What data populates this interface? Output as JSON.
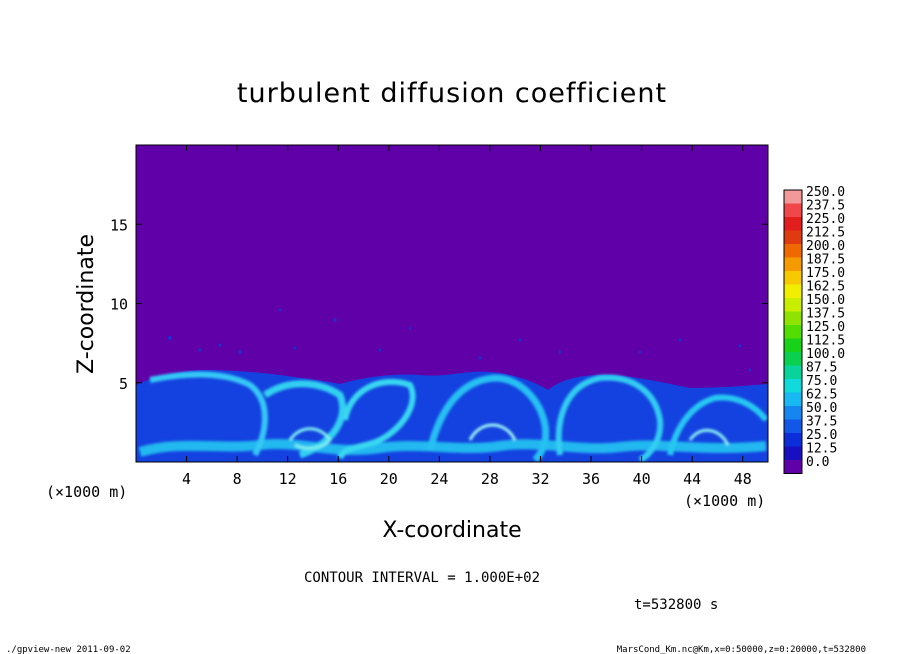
{
  "chart_data": {
    "type": "heatmap",
    "title": "turbulent diffusion coefficient",
    "xlabel": "X-coordinate",
    "ylabel": "Z-coordinate",
    "x_unit": "(×1000 m)",
    "y_unit": "(×1000 m)",
    "xlim": [
      0,
      50
    ],
    "ylim": [
      0,
      20
    ],
    "x_ticks": [
      4,
      8,
      12,
      16,
      20,
      24,
      28,
      32,
      36,
      40,
      44,
      48
    ],
    "y_ticks": [
      5,
      10,
      15
    ],
    "colorbar": {
      "levels": [
        "250.0",
        "237.5",
        "225.0",
        "212.5",
        "200.0",
        "187.5",
        "175.0",
        "162.5",
        "150.0",
        "137.5",
        "125.0",
        "112.5",
        "100.0",
        "87.5",
        "75.0",
        "62.5",
        "50.0",
        "37.5",
        "25.0",
        "12.5",
        "0.0"
      ],
      "colors": [
        "#f29a9a",
        "#f0474a",
        "#e21d1d",
        "#e03a10",
        "#ee6a00",
        "#f59a00",
        "#f7c900",
        "#f2ee00",
        "#c9ee00",
        "#8ee400",
        "#52dc00",
        "#18d21a",
        "#0ad050",
        "#08d39a",
        "#10dadc",
        "#18b8f2",
        "#1585f0",
        "#1257e6",
        "#0c2ed8",
        "#1810c0",
        "#6000a8"
      ]
    },
    "background_color": "#6000a8",
    "boundary_layer_top_km": 5.5,
    "contour_interval": "CONTOUR INTERVAL = 1.000E+02",
    "time_label": "t=532800 s"
  },
  "footer": {
    "left": "./gpview-new  2011-09-02",
    "right": "MarsCond_Km.nc@Km,x=0:50000,z=0:20000,t=532800"
  }
}
